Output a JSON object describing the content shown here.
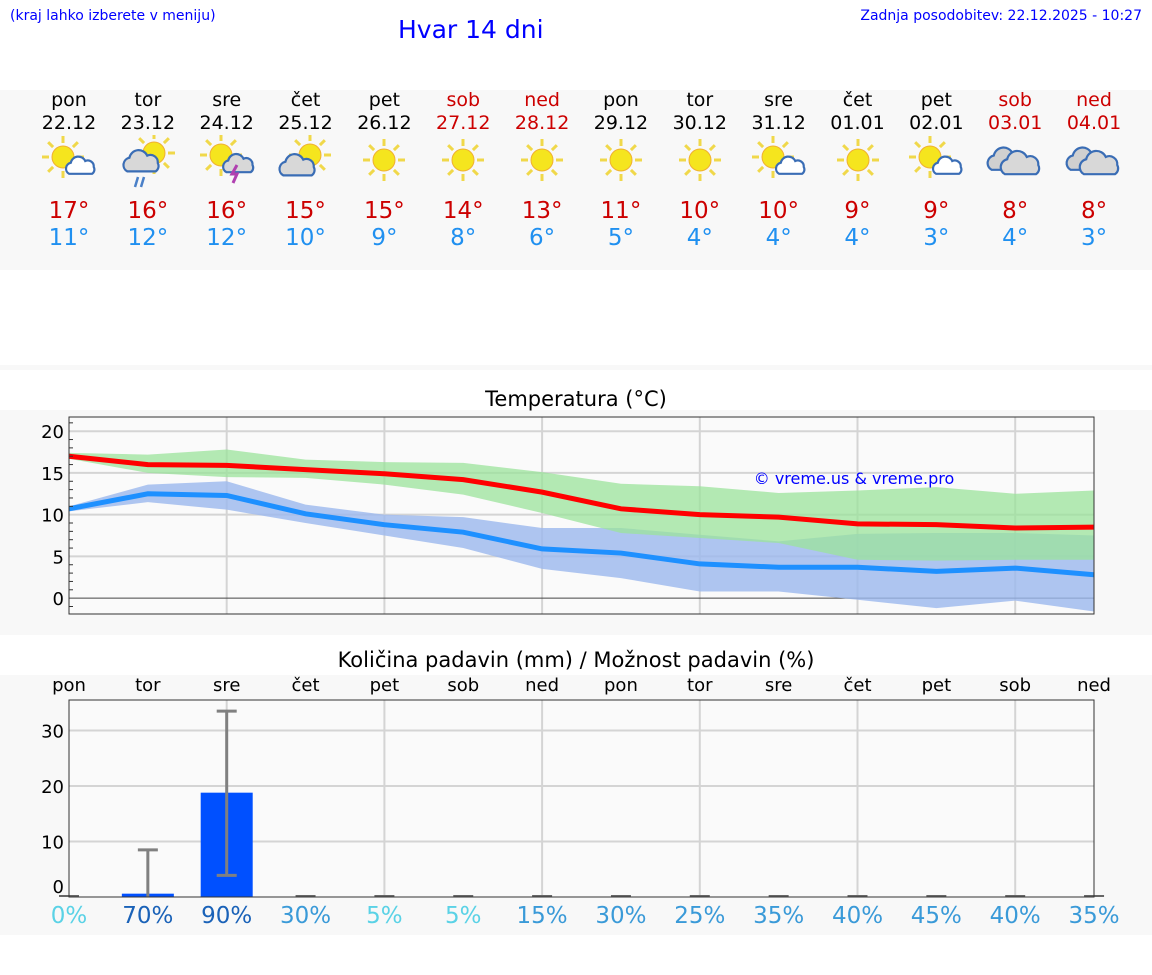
{
  "header": {
    "note": "(kraj lahko izberete v meniju)",
    "title": "Hvar 14 dni",
    "updated": "Zadnja posodobitev: 22.12.2025 - 10:27"
  },
  "days": [
    {
      "name": "pon",
      "date": "22.12",
      "weekend": false,
      "icon": "sun-small-cloud",
      "max": "17°",
      "min": "11°"
    },
    {
      "name": "tor",
      "date": "23.12",
      "weekend": false,
      "icon": "sun-cloud-rain",
      "max": "16°",
      "min": "12°"
    },
    {
      "name": "sre",
      "date": "24.12",
      "weekend": false,
      "icon": "sun-cloud-thunder",
      "max": "16°",
      "min": "12°"
    },
    {
      "name": "čet",
      "date": "25.12",
      "weekend": false,
      "icon": "sun-cloud",
      "max": "15°",
      "min": "10°"
    },
    {
      "name": "pet",
      "date": "26.12",
      "weekend": false,
      "icon": "sun",
      "max": "15°",
      "min": "9°"
    },
    {
      "name": "sob",
      "date": "27.12",
      "weekend": true,
      "icon": "sun",
      "max": "14°",
      "min": "8°"
    },
    {
      "name": "ned",
      "date": "28.12",
      "weekend": true,
      "icon": "sun",
      "max": "13°",
      "min": "6°"
    },
    {
      "name": "pon",
      "date": "29.12",
      "weekend": false,
      "icon": "sun",
      "max": "11°",
      "min": "5°"
    },
    {
      "name": "tor",
      "date": "30.12",
      "weekend": false,
      "icon": "sun",
      "max": "10°",
      "min": "4°"
    },
    {
      "name": "sre",
      "date": "31.12",
      "weekend": false,
      "icon": "sun-small-cloud",
      "max": "10°",
      "min": "4°"
    },
    {
      "name": "čet",
      "date": "01.01",
      "weekend": false,
      "icon": "sun",
      "max": "9°",
      "min": "4°"
    },
    {
      "name": "pet",
      "date": "02.01",
      "weekend": false,
      "icon": "sun-small-cloud",
      "max": "9°",
      "min": "3°"
    },
    {
      "name": "sob",
      "date": "03.01",
      "weekend": true,
      "icon": "clouds",
      "max": "8°",
      "min": "4°"
    },
    {
      "name": "ned",
      "date": "04.01",
      "weekend": true,
      "icon": "clouds",
      "max": "8°",
      "min": "3°"
    }
  ],
  "colors": {
    "max": "#ff0000",
    "min": "#1e90ff",
    "max_band": "#9be39b",
    "min_band": "#9bb8ee",
    "bar": "#0050ff",
    "err": "#808080"
  },
  "chart_data": [
    {
      "type": "line",
      "title": "Temperatura (°C)",
      "watermark": "© vreme.us & vreme.pro",
      "ylim": [
        -1.9,
        21.7
      ],
      "yticks": [
        "0",
        "5",
        "10",
        "15",
        "20"
      ],
      "series": [
        {
          "name": "max",
          "values": [
            17,
            16,
            15.9,
            15.4,
            14.9,
            14.2,
            12.7,
            10.7,
            10,
            9.7,
            8.9,
            8.8,
            8.4,
            8.5
          ],
          "band_upper": [
            17.4,
            17.2,
            17.8,
            16.6,
            16.3,
            16.2,
            15.1,
            13.7,
            13.4,
            12.6,
            12.9,
            13.3,
            12.5,
            12.9
          ],
          "band_lower": [
            16.7,
            15,
            14.5,
            14.4,
            13.6,
            12.4,
            10.2,
            7.8,
            7.2,
            6.6,
            4.6,
            4.5,
            4.6,
            4.6
          ]
        },
        {
          "name": "min",
          "values": [
            10.7,
            12.5,
            12.3,
            10.1,
            8.8,
            7.9,
            5.9,
            5.4,
            4.1,
            3.7,
            3.7,
            3.2,
            3.6,
            2.8
          ],
          "band_upper": [
            11,
            13.6,
            14,
            11.2,
            10,
            9.7,
            8.4,
            8.4,
            7.6,
            6.8,
            7.7,
            7.8,
            7.8,
            7.5
          ],
          "band_lower": [
            10.4,
            11.5,
            10.6,
            9,
            7.5,
            6,
            3.5,
            2.4,
            0.8,
            0.8,
            -0.2,
            -1.2,
            -0.3,
            -1.6
          ]
        }
      ]
    },
    {
      "type": "bar",
      "title": "Količina padavin (mm) / Možnost padavin (%)",
      "ylim": [
        0,
        35.5
      ],
      "yticks": [
        "0",
        "10",
        "20",
        "30"
      ],
      "categories": [
        "pon",
        "tor",
        "sre",
        "čet",
        "pet",
        "sob",
        "ned",
        "pon",
        "tor",
        "sre",
        "čet",
        "pet",
        "sob",
        "ned"
      ],
      "values": [
        0,
        0.6,
        18.8,
        0,
        0,
        0,
        0,
        0,
        0,
        0,
        0,
        0,
        0,
        0
      ],
      "err_low": [
        0,
        0,
        3.9,
        0,
        0,
        0,
        0,
        0,
        0,
        0,
        0,
        0,
        0,
        0
      ],
      "err_high": [
        0,
        8.5,
        33.5,
        0,
        0,
        0,
        0,
        0,
        0,
        0,
        0,
        0,
        0,
        0
      ],
      "probability": [
        "0%",
        "70%",
        "90%",
        "30%",
        "5%",
        "5%",
        "15%",
        "30%",
        "25%",
        "35%",
        "40%",
        "45%",
        "40%",
        "35%"
      ],
      "probability_values": [
        0,
        70,
        90,
        30,
        5,
        5,
        15,
        30,
        25,
        35,
        40,
        45,
        40,
        35
      ]
    }
  ]
}
